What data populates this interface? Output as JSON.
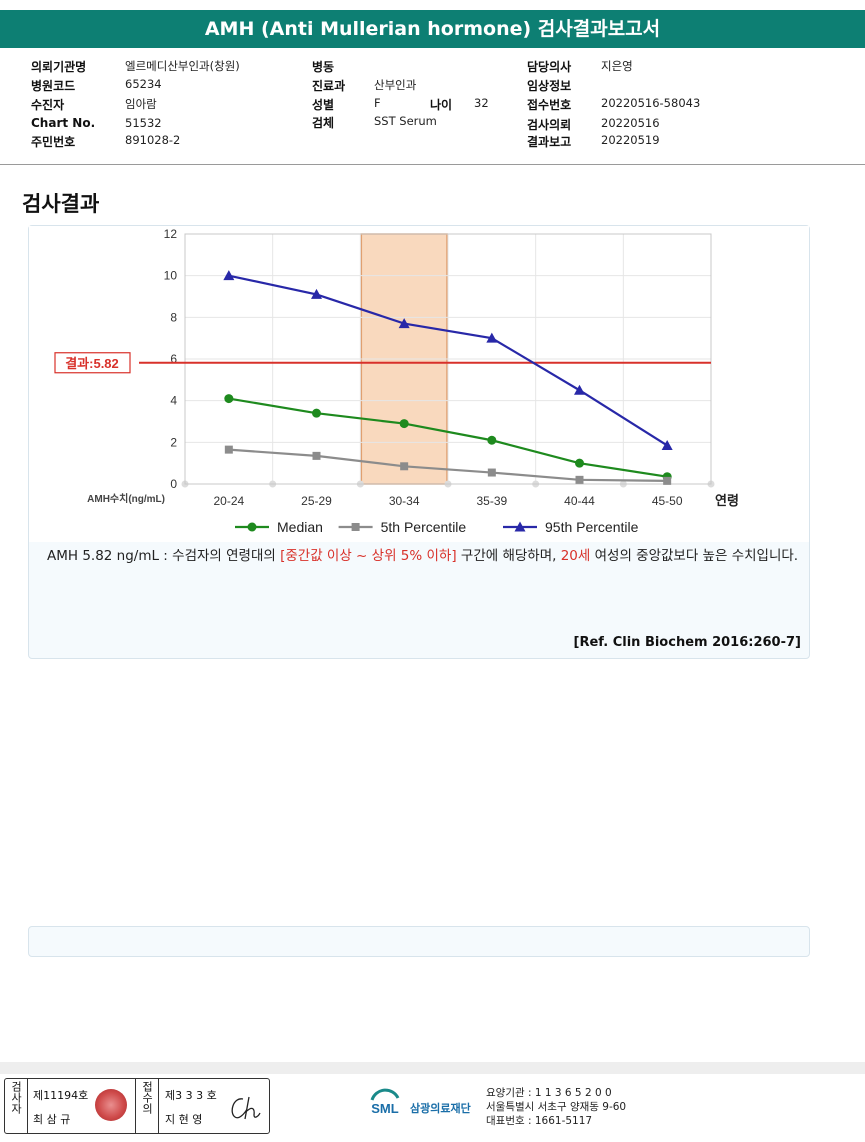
{
  "report": {
    "title": "AMH (Anti Mullerian hormone) 검사결과보고서"
  },
  "patient_info": {
    "fields": [
      {
        "label": "의뢰기관명",
        "value": "엘르메디산부인과(창원)"
      },
      {
        "label": "병원코드",
        "value": "65234"
      },
      {
        "label": "수진자",
        "value": "임아람"
      },
      {
        "label": "Chart No.",
        "value": "51532"
      },
      {
        "label": "주민번호",
        "value": "891028-2"
      },
      {
        "label": "병동",
        "value": ""
      },
      {
        "label": "진료과",
        "value": "산부인과"
      },
      {
        "label": "성별",
        "value": "F"
      },
      {
        "label": "나이",
        "value": "32"
      },
      {
        "label": "검체",
        "value": "SST Serum"
      },
      {
        "label": "담당의사",
        "value": "지은영"
      },
      {
        "label": "임상정보",
        "value": ""
      },
      {
        "label": "접수번호",
        "value": "20220516-58043"
      },
      {
        "label": "검사의뢰",
        "value": "20220516"
      },
      {
        "label": "결과보고",
        "value": "20220519"
      }
    ]
  },
  "section": {
    "title": "검사결과"
  },
  "chart_data": {
    "type": "line",
    "categories": [
      "20-24",
      "25-29",
      "30-34",
      "35-39",
      "40-44",
      "45-50"
    ],
    "series": [
      {
        "name": "Median",
        "values": [
          4.1,
          3.4,
          2.9,
          2.1,
          1.0,
          0.35
        ],
        "color": "#1e8a1e",
        "marker": "circle"
      },
      {
        "name": "5th Percentile",
        "values": [
          1.65,
          1.35,
          0.85,
          0.55,
          0.2,
          0.15
        ],
        "color": "#8c8c8c",
        "marker": "square"
      },
      {
        "name": "95th Percentile",
        "values": [
          10.0,
          9.1,
          7.7,
          7.0,
          4.5,
          1.85
        ],
        "color": "#2828a8",
        "marker": "triangle"
      }
    ],
    "result": {
      "label": "결과:5.82",
      "value": 5.82,
      "color": "#d8312a"
    },
    "highlight_category": "30-34",
    "highlight_color": "#f7c9a3",
    "ylim": [
      0,
      12
    ],
    "yticks": [
      "0",
      "2",
      "4",
      "6",
      "8",
      "10",
      "12"
    ],
    "ylabel": "AMH수치(ng/mL)",
    "xlabel": "연령",
    "grid": true,
    "legend_placement": "bottom"
  },
  "description": {
    "part1": "AMH  5.82 ng/mL : 수검자의 연령대의 ",
    "highlight1": "[중간값 이상 ~ 상위 5% 이하]",
    "part2": " 구간에 해당하며, ",
    "highlight2": "20세",
    "part3": " 여성의 중앙값보다 높은 수치입니다.",
    "reference": "[Ref. Clin Biochem 2016:260-7]"
  },
  "footer": {
    "inspector_label": "검사자",
    "inspector_no": "제11194호",
    "inspector_name": "최 삼 규",
    "confirm_label": "접수의",
    "confirm_no": "제3 3 3 호",
    "confirm_name": "지 현 영",
    "org_name": "삼광의료재단",
    "org_code": "요양기관 : 1 1 3 6 5 2 0 0",
    "org_address": "서울특별시 서초구 양재동 9-60",
    "org_phone": "대표번호 : 1661-5117",
    "logo_text": "SML"
  }
}
